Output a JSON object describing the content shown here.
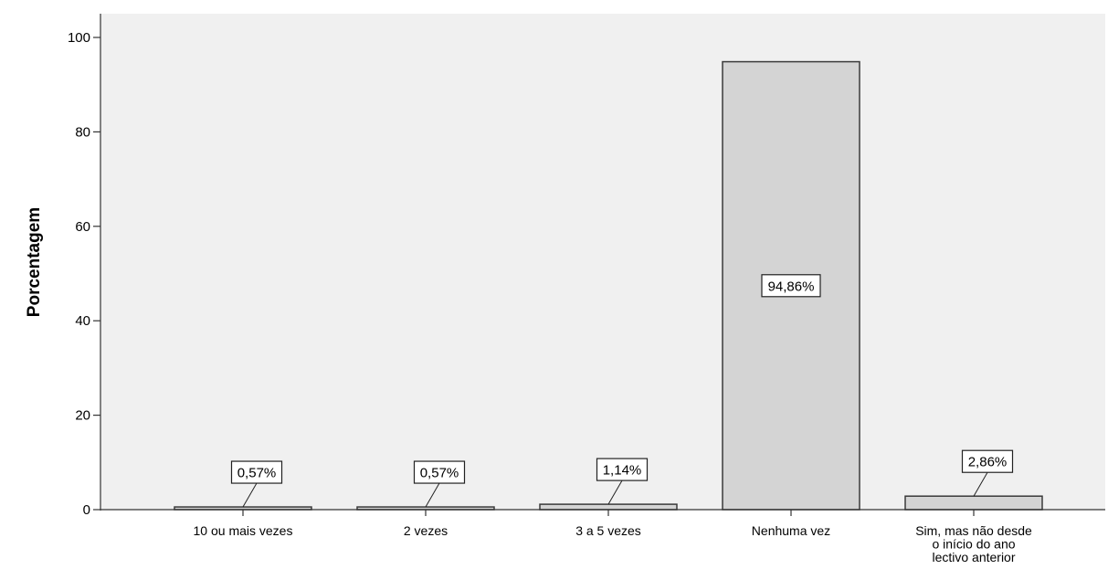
{
  "chart_data": {
    "type": "bar",
    "title": "",
    "xlabel": "",
    "ylabel": "Porcentagem",
    "ylim": [
      0,
      100
    ],
    "yticks": [
      0,
      20,
      40,
      60,
      80,
      100
    ],
    "grid": false,
    "bar_color": "#d4d4d4",
    "background": "#f0f0f0",
    "categories": [
      [
        "10 ou mais vezes"
      ],
      [
        "2 vezes"
      ],
      [
        "3 a 5 vezes"
      ],
      [
        "Nenhuma vez"
      ],
      [
        "Sim, mas não desde",
        "o início do ano",
        "lectivo anterior"
      ]
    ],
    "values": [
      0.57,
      0.57,
      1.14,
      94.86,
      2.86
    ],
    "data_labels": [
      "0,57%",
      "0,57%",
      "1,14%",
      "94,86%",
      "2,86%"
    ]
  }
}
